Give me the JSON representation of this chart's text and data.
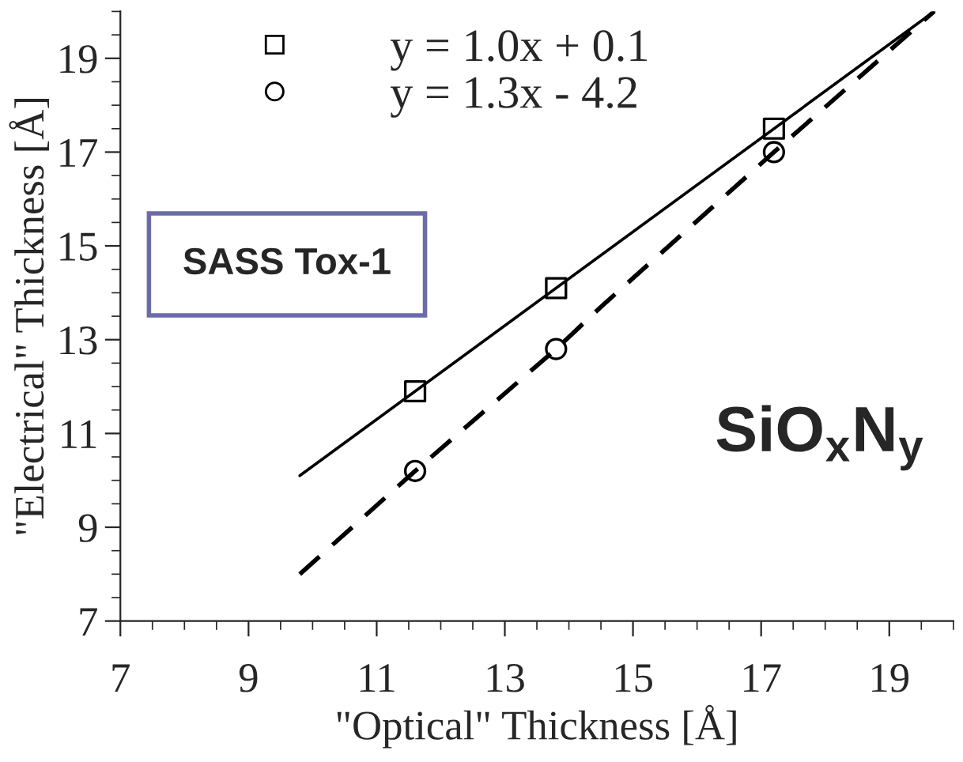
{
  "chart_data": {
    "type": "scatter",
    "xlabel": "\"Optical\" Thickness [Å]",
    "ylabel": "\"Electrical\" Thickness [Å]",
    "xlim": [
      7,
      20
    ],
    "ylim": [
      7,
      20
    ],
    "xticks": [
      7,
      9,
      11,
      13,
      15,
      17,
      19
    ],
    "yticks": [
      7,
      9,
      11,
      13,
      15,
      17,
      19
    ],
    "grid": false,
    "legend": "top left",
    "series": [
      {
        "name": "y = 1.0x + 0.1",
        "color": "#000000",
        "marker": "square",
        "x": [
          11.6,
          13.8,
          17.2
        ],
        "values": [
          11.9,
          14.1,
          17.5
        ]
      },
      {
        "name": "y = 1.3x - 4.2",
        "color": "#000000",
        "marker": "circle",
        "x": [
          11.6,
          13.8,
          17.2
        ],
        "values": [
          10.2,
          12.8,
          17.0
        ]
      },
      {
        "type": "line",
        "color": "#000000",
        "line_style": "solid",
        "x": [
          9.8,
          19.7
        ],
        "values": [
          10.1,
          20.0
        ]
      },
      {
        "type": "line",
        "color": "#000000",
        "line_style": "dashed",
        "x": [
          9.8,
          11.6,
          13.8,
          14.5,
          17.2,
          19.7
        ],
        "values": [
          8.0,
          10.2,
          12.8,
          13.7,
          17.0,
          20.0
        ]
      }
    ],
    "annotations": [
      "SASS Tox-1",
      "SiO$_{x}$N$_{y}$"
    ]
  }
}
